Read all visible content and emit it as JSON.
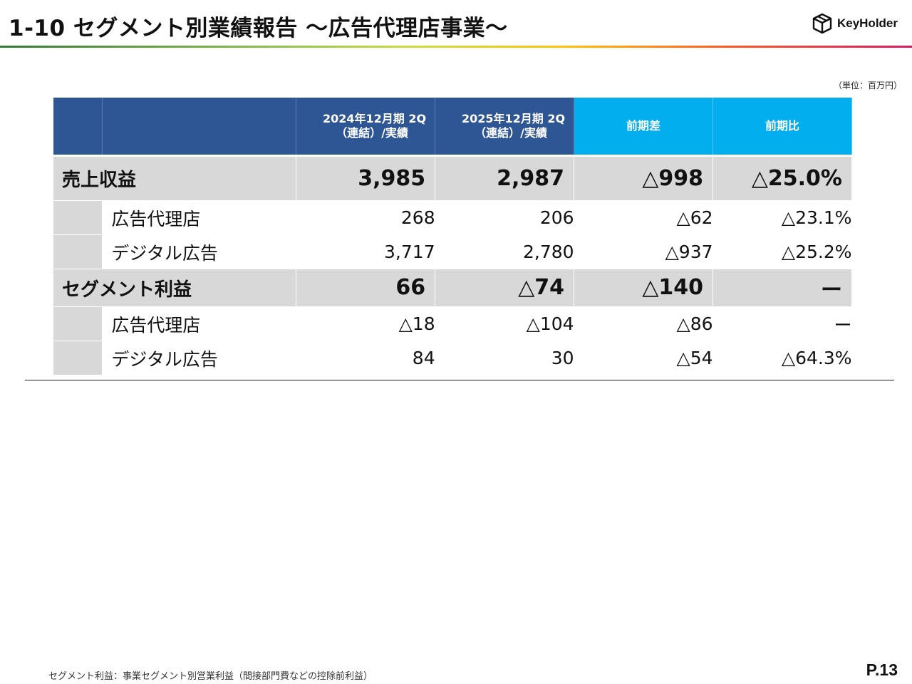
{
  "header": {
    "title": "1-10  セグメント別業績報告 ～広告代理店事業～",
    "logo_text": "KeyHolder"
  },
  "unit_note": "（単位：百万円）",
  "table": {
    "columns": [
      {
        "line1": "2024年12月期 2Q",
        "line2": "（連結）/実績"
      },
      {
        "line1": "2025年12月期 2Q",
        "line2": "（連結）/実績"
      },
      {
        "line1": "前期差"
      },
      {
        "line1": "前期比"
      }
    ],
    "rows": [
      {
        "type": "main",
        "label": "売上収益",
        "values": [
          "3,985",
          "2,987",
          "△998",
          "△25.0%"
        ]
      },
      {
        "type": "sub",
        "label": "広告代理店",
        "values": [
          "268",
          "206",
          "△62",
          "△23.1%"
        ]
      },
      {
        "type": "sub",
        "label": "デジタル広告",
        "values": [
          "3,717",
          "2,780",
          "△937",
          "△25.2%"
        ]
      },
      {
        "type": "main",
        "label": "セグメント利益",
        "values": [
          "66",
          "△74",
          "△140",
          "ー"
        ]
      },
      {
        "type": "sub",
        "label": "広告代理店",
        "values": [
          "△18",
          "△104",
          "△86",
          "ー"
        ]
      },
      {
        "type": "sub",
        "label": "デジタル広告",
        "values": [
          "84",
          "30",
          "△54",
          "△64.3%"
        ]
      }
    ]
  },
  "footnote": "セグメント利益：事業セグメント別営業利益（間接部門費などの控除前利益）",
  "page_number": "P.13",
  "colors": {
    "header_navy": "#2e5594",
    "header_cyan": "#02aeee",
    "row_gray": "#d8d8d8"
  }
}
